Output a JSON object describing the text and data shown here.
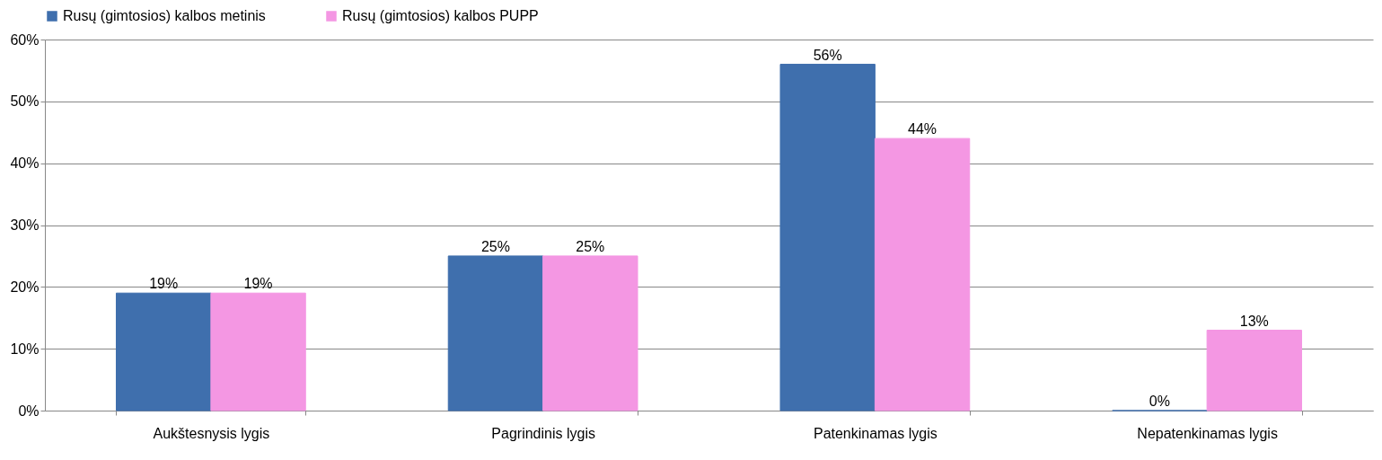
{
  "chart_data": {
    "type": "bar",
    "categories": [
      "Aukštesnysis lygis",
      "Pagrindinis lygis",
      "Patenkinamas lygis",
      "Nepatenkinamas lygis"
    ],
    "series": [
      {
        "name": "Rusų (gimtosios) kalbos  metinis",
        "color": "#3f6fad",
        "values": [
          19,
          25,
          56,
          0
        ],
        "value_labels": [
          "19%",
          "25%",
          "56%",
          "0%"
        ]
      },
      {
        "name": "Rusų (gimtosios) kalbos PUPP",
        "color": "#f497e3",
        "values": [
          19,
          25,
          44,
          13
        ],
        "value_labels": [
          "19%",
          "25%",
          "44%",
          "13%"
        ]
      }
    ],
    "ylim": [
      0,
      60
    ],
    "yticks": [
      {
        "value": 0,
        "label": "0%"
      },
      {
        "value": 10,
        "label": "10%"
      },
      {
        "value": 20,
        "label": "20%"
      },
      {
        "value": 30,
        "label": "30%"
      },
      {
        "value": 40,
        "label": "40%"
      },
      {
        "value": 50,
        "label": "50%"
      },
      {
        "value": 60,
        "label": "60%"
      }
    ],
    "grid": "y",
    "legend": "top"
  }
}
